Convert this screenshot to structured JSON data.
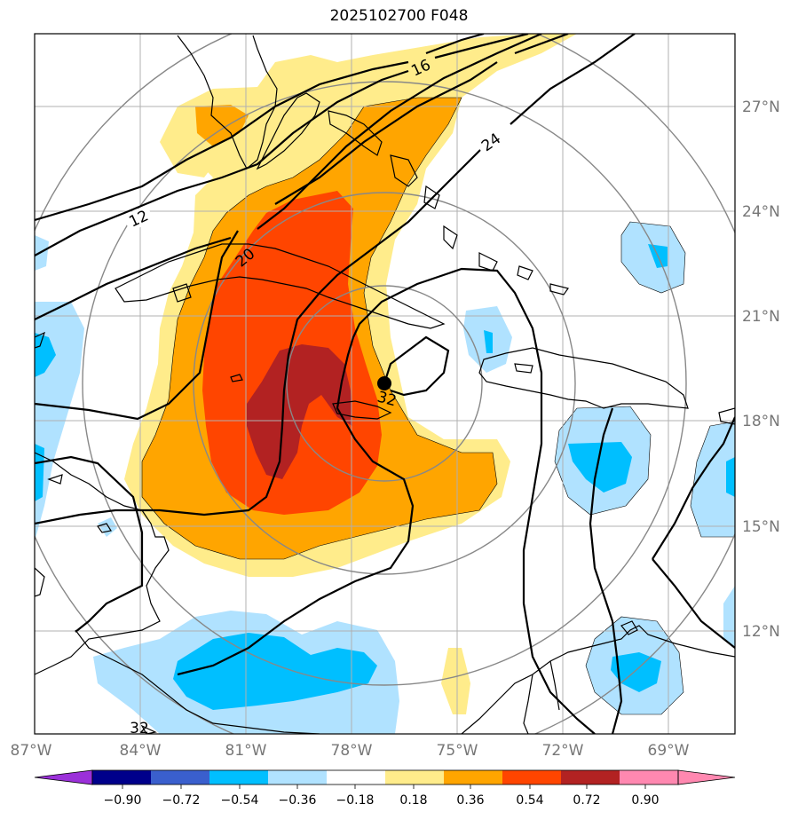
{
  "title": "2025102700 F048",
  "lat_labels": [
    "27°N",
    "24°N",
    "21°N",
    "18°N",
    "15°N",
    "12°N"
  ],
  "lon_labels": [
    "87°W",
    "84°W",
    "81°W",
    "78°W",
    "75°W",
    "72°W",
    "69°W"
  ],
  "contour_labels": [
    "12",
    "16",
    "20",
    "24",
    "32",
    "32"
  ],
  "colorbar": {
    "tick_labels": [
      "−0.90",
      "−0.72",
      "−0.54",
      "−0.36",
      "−0.18",
      "0.18",
      "0.36",
      "0.54",
      "0.72",
      "0.90"
    ],
    "colors": [
      "#9b30d9",
      "#00008b",
      "#3a5fcd",
      "#00bfff",
      "#b0e2ff",
      "#ffffff",
      "#ffec8b",
      "#ffa500",
      "#ff4500",
      "#b22222",
      "#ff88b0"
    ]
  },
  "fill_colors": {
    "light_yellow": "#ffec8b",
    "orange": "#ffa500",
    "red_orange": "#ff4500",
    "dark_red": "#b22222",
    "light_blue": "#b0e2ff",
    "blue": "#00bfff"
  }
}
